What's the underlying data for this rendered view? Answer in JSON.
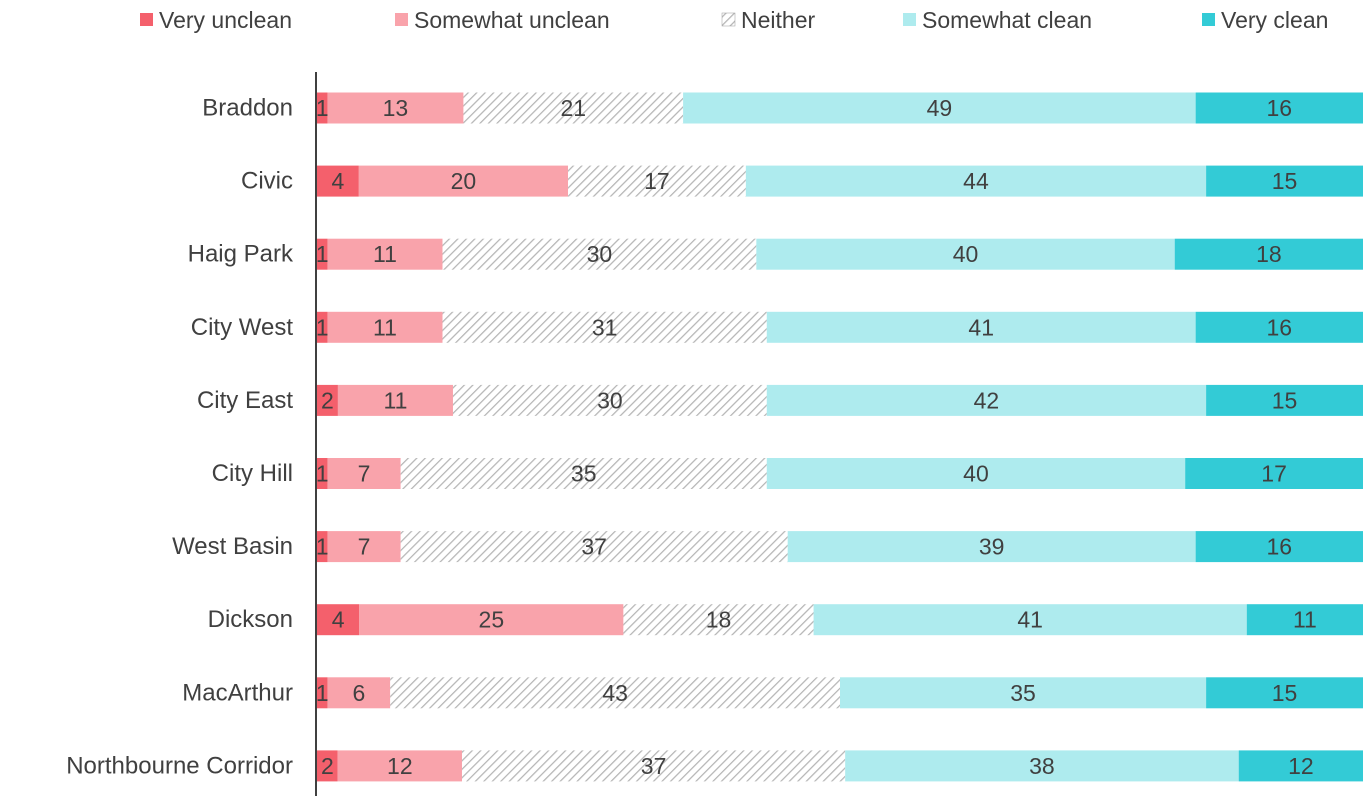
{
  "chart_data": {
    "type": "bar",
    "orientation": "horizontal",
    "stacked": true,
    "percent_stacked": true,
    "categories": [
      "Braddon",
      "Civic",
      "Haig Park",
      "City West",
      "City East",
      "City Hill",
      "West Basin",
      "Dickson",
      "MacArthur",
      "Northbourne Corridor"
    ],
    "series": [
      {
        "name": "Very unclean",
        "color": "#f4606c",
        "values": [
          1,
          4,
          1,
          1,
          2,
          1,
          1,
          4,
          1,
          2
        ]
      },
      {
        "name": "Somewhat unclean",
        "color": "#f9a3ab",
        "values": [
          13,
          20,
          11,
          11,
          11,
          7,
          7,
          25,
          6,
          12
        ]
      },
      {
        "name": "Neither",
        "color": "#b5b5b5",
        "hatch": true,
        "values": [
          21,
          17,
          30,
          31,
          30,
          35,
          37,
          18,
          43,
          37
        ]
      },
      {
        "name": "Somewhat clean",
        "color": "#aeebee",
        "values": [
          49,
          44,
          40,
          41,
          42,
          40,
          39,
          41,
          35,
          38
        ]
      },
      {
        "name": "Very clean",
        "color": "#33cbd6",
        "values": [
          16,
          15,
          18,
          16,
          15,
          17,
          16,
          11,
          15,
          12
        ]
      }
    ],
    "legend": "top"
  }
}
